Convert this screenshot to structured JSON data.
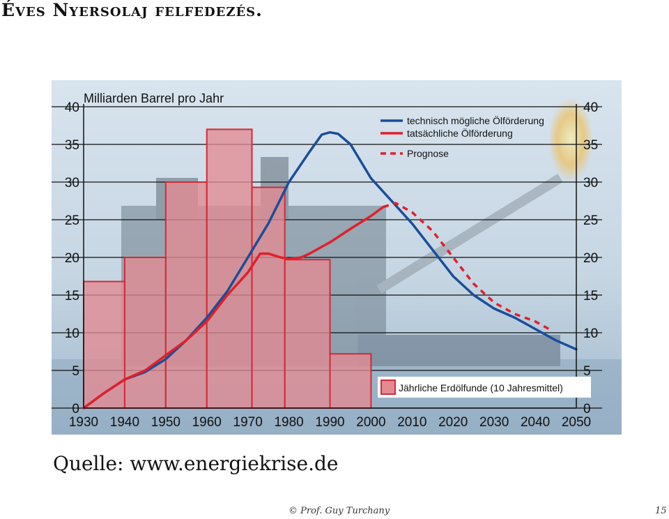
{
  "slide": {
    "title": "Éves Nyersolaj felfedezés.",
    "source": "Quelle: www.energiekrise.de",
    "credit": "© Prof. Guy Turchany",
    "page": "15"
  },
  "colors": {
    "blue": "#1a4d9a",
    "red": "#e0202a",
    "bar_fill": "#e38a92",
    "bar_stroke": "#d12a36",
    "background": "#c9d9e6"
  },
  "chart_data": {
    "type": "bar",
    "title": "",
    "ylabel": "Milliarden Barrel pro Jahr",
    "xlim": [
      1930,
      2050
    ],
    "ylim": [
      0,
      40
    ],
    "x_ticks": [
      "1930",
      "1940",
      "1950",
      "1960",
      "1970",
      "1980",
      "1990",
      "2000",
      "2010",
      "2020",
      "2030",
      "2040",
      "2050"
    ],
    "y_ticks": [
      "0",
      "5",
      "10",
      "15",
      "20",
      "25",
      "30",
      "35",
      "40"
    ],
    "grid": true,
    "legend_position": "top-right",
    "bars": {
      "name": "Jährliche Erdölfunde (10 Jahresmittel)",
      "intervals": [
        {
          "from": 1930,
          "to": 1940,
          "value": 16.8
        },
        {
          "from": 1940,
          "to": 1950,
          "value": 20
        },
        {
          "from": 1950,
          "to": 1960,
          "value": 30
        },
        {
          "from": 1960,
          "to": 1971,
          "value": 37
        },
        {
          "from": 1971,
          "to": 1979,
          "value": 29.3
        },
        {
          "from": 1979,
          "to": 1990,
          "value": 19.7
        },
        {
          "from": 1990,
          "to": 2000,
          "value": 7.2
        }
      ]
    },
    "series": [
      {
        "name": "technisch mögliche Ölförderung",
        "style": "solid",
        "color": "#1a4d9a",
        "points": [
          [
            1930,
            0
          ],
          [
            1935,
            2
          ],
          [
            1940,
            3.8
          ],
          [
            1945,
            4.8
          ],
          [
            1950,
            6.5
          ],
          [
            1955,
            9
          ],
          [
            1960,
            12
          ],
          [
            1965,
            15.5
          ],
          [
            1970,
            20
          ],
          [
            1975,
            24.5
          ],
          [
            1980,
            30
          ],
          [
            1985,
            34
          ],
          [
            1988,
            36.3
          ],
          [
            1990,
            36.6
          ],
          [
            1992,
            36.4
          ],
          [
            1995,
            35
          ],
          [
            2000,
            30.5
          ],
          [
            2005,
            27.5
          ],
          [
            2010,
            24.5
          ],
          [
            2015,
            21
          ],
          [
            2020,
            17.5
          ],
          [
            2025,
            15
          ],
          [
            2030,
            13.2
          ],
          [
            2035,
            12
          ],
          [
            2040,
            10.5
          ],
          [
            2045,
            9
          ],
          [
            2050,
            7.8
          ]
        ]
      },
      {
        "name": "tatsächliche Ölförderung",
        "style": "solid",
        "color": "#e0202a",
        "points": [
          [
            1930,
            0
          ],
          [
            1935,
            2
          ],
          [
            1940,
            3.8
          ],
          [
            1945,
            5
          ],
          [
            1950,
            7
          ],
          [
            1955,
            9
          ],
          [
            1960,
            11.5
          ],
          [
            1965,
            15
          ],
          [
            1970,
            18
          ],
          [
            1973,
            20.5
          ],
          [
            1975,
            20.5
          ],
          [
            1978,
            20
          ],
          [
            1980,
            19.8
          ],
          [
            1983,
            20
          ],
          [
            1985,
            20.5
          ],
          [
            1990,
            22
          ],
          [
            1995,
            23.8
          ],
          [
            2000,
            25.5
          ],
          [
            2003,
            26.7
          ]
        ]
      },
      {
        "name": "Prognose",
        "style": "dashed",
        "color": "#e0202a",
        "points": [
          [
            2003,
            26.7
          ],
          [
            2006,
            27.2
          ],
          [
            2010,
            26
          ],
          [
            2015,
            23.5
          ],
          [
            2020,
            20
          ],
          [
            2025,
            16.5
          ],
          [
            2030,
            14
          ],
          [
            2035,
            12.5
          ],
          [
            2040,
            11.5
          ],
          [
            2044,
            10.3
          ]
        ]
      }
    ]
  }
}
